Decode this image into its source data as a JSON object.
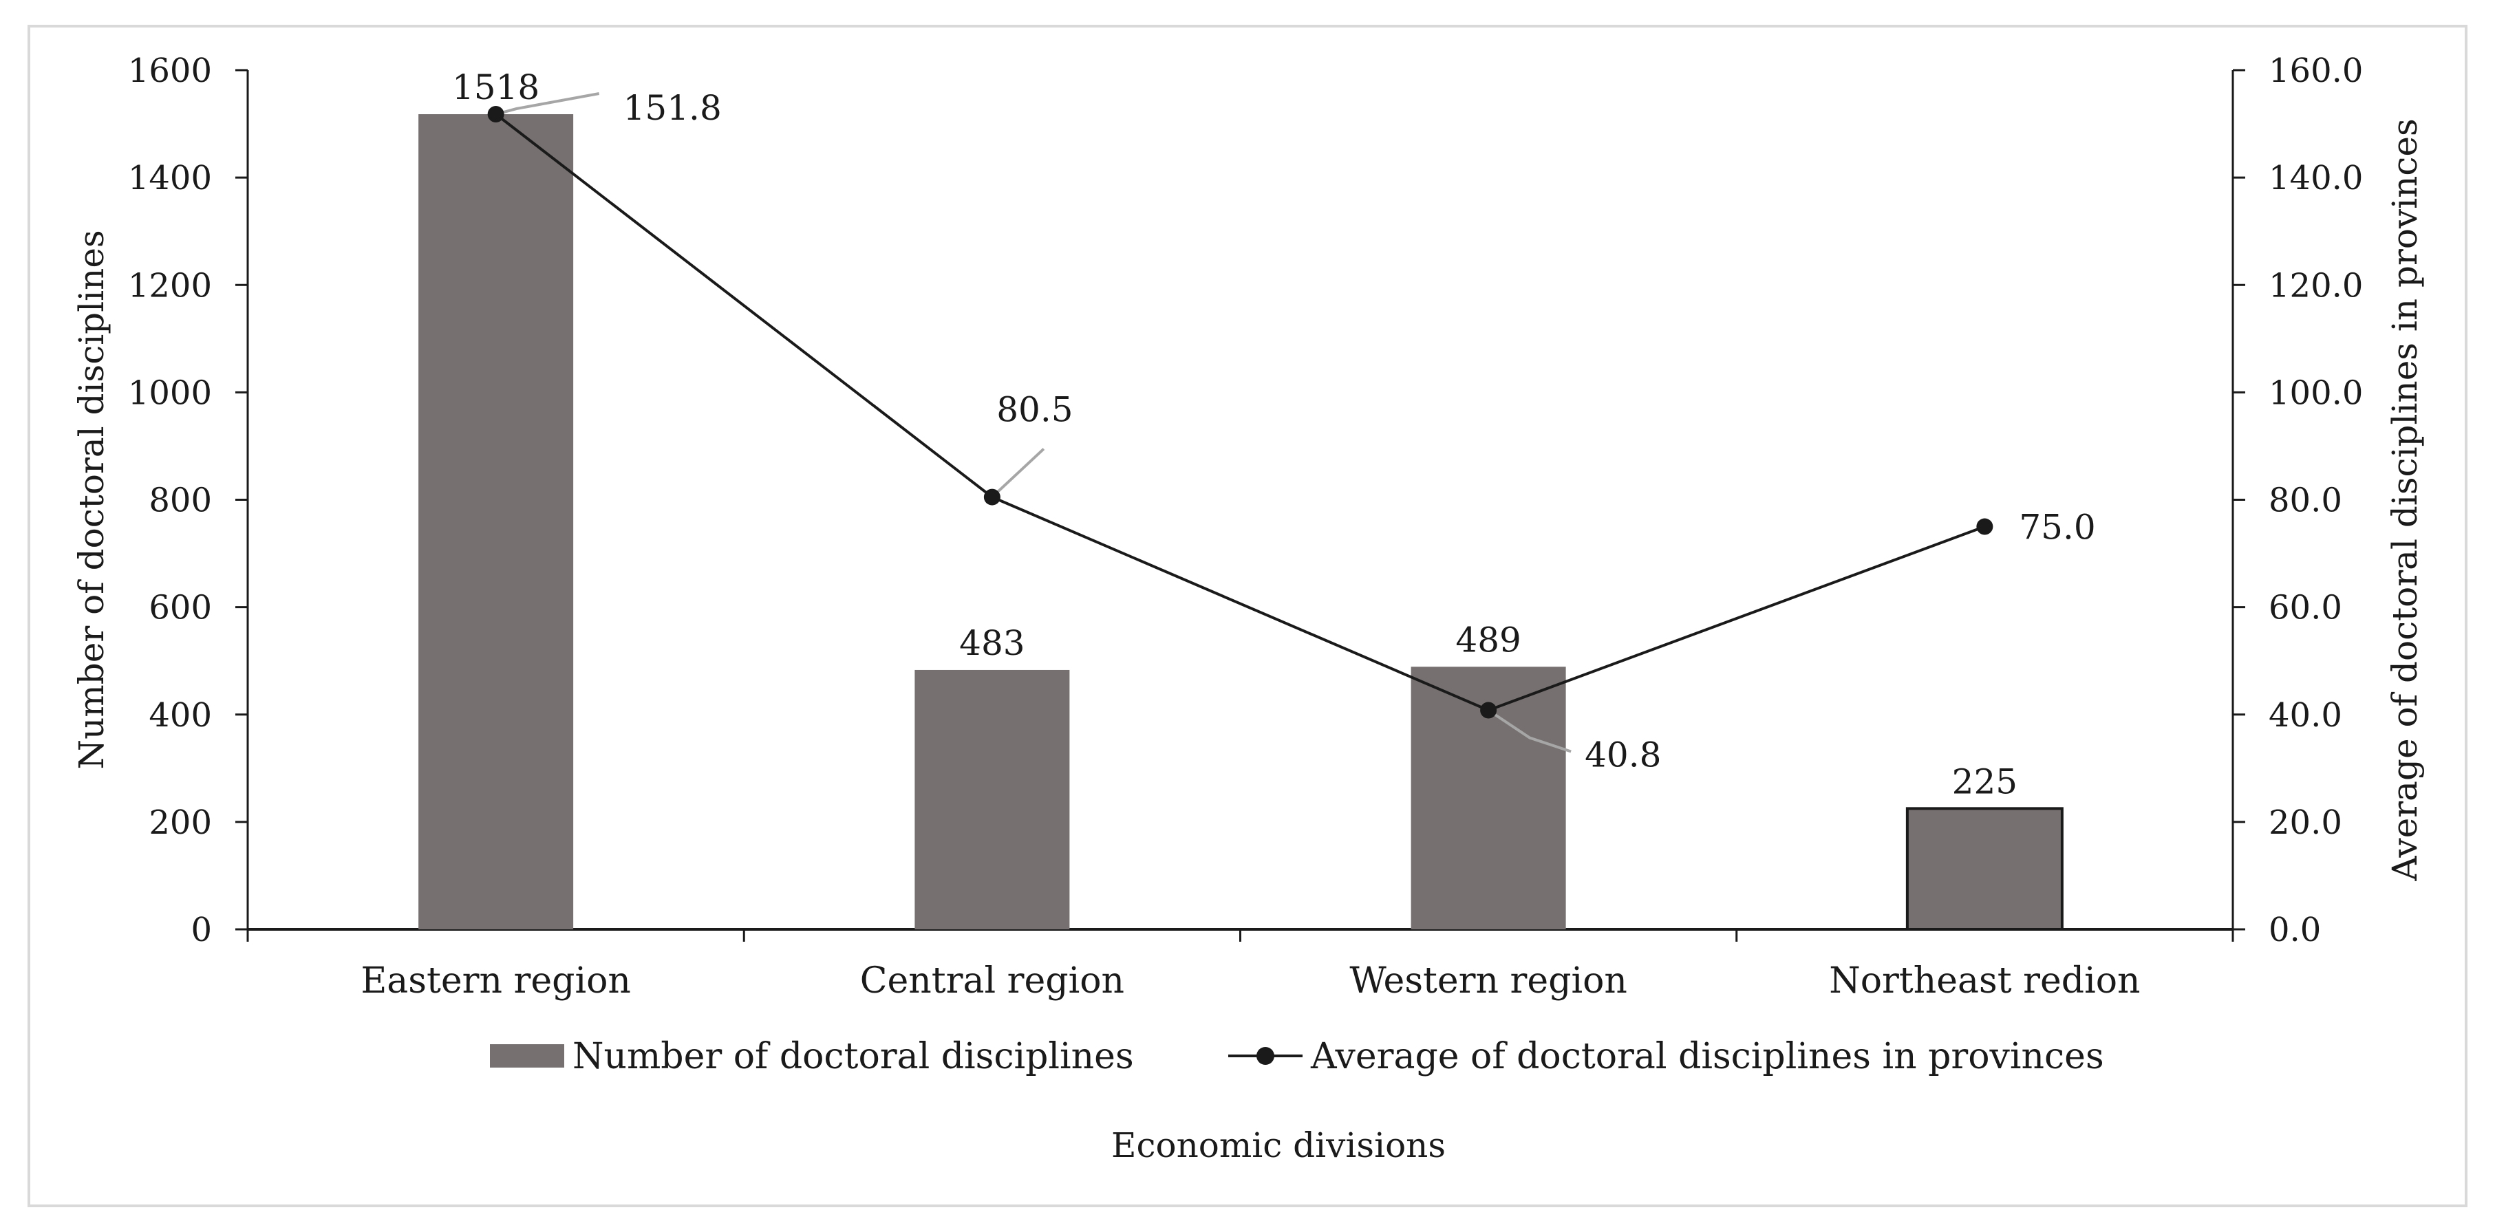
{
  "chart_data": {
    "type": "bar+line",
    "title": "",
    "categories": [
      "Eastern region",
      "Central region",
      "Western region",
      "Northeast redion"
    ],
    "series": [
      {
        "name": "Number of doctoral disciplines",
        "kind": "bar",
        "axis": "left",
        "values": [
          1518,
          483,
          489,
          225
        ],
        "labels": [
          "1518",
          "483",
          "489",
          "225"
        ],
        "color": "#767170"
      },
      {
        "name": "Average of doctoral disciplines in provinces",
        "kind": "line",
        "axis": "right",
        "values": [
          151.8,
          80.5,
          40.8,
          75.0
        ],
        "labels": [
          "151.8",
          "80.5",
          "40.8",
          "75.0"
        ],
        "color": "#1a1a1a"
      }
    ],
    "xlabel": "Economic divisions",
    "ylabel": "Number of doctoral disciplines",
    "y2label": "Average of doctoral disciplines in provinces",
    "ylim": [
      0,
      1600
    ],
    "y2lim": [
      0,
      160
    ],
    "yticks": [
      "0",
      "200",
      "400",
      "600",
      "800",
      "1000",
      "1200",
      "1400",
      "1600"
    ],
    "y2ticks": [
      "0.0",
      "20.0",
      "40.0",
      "60.0",
      "80.0",
      "100.0",
      "120.0",
      "140.0",
      "160.0"
    ],
    "grid": false,
    "legend_position": "bottom-center",
    "colors": {
      "bar": "#767170",
      "line": "#1a1a1a",
      "leader": "#a6a6a6",
      "frame": "#d9d9d9"
    }
  }
}
